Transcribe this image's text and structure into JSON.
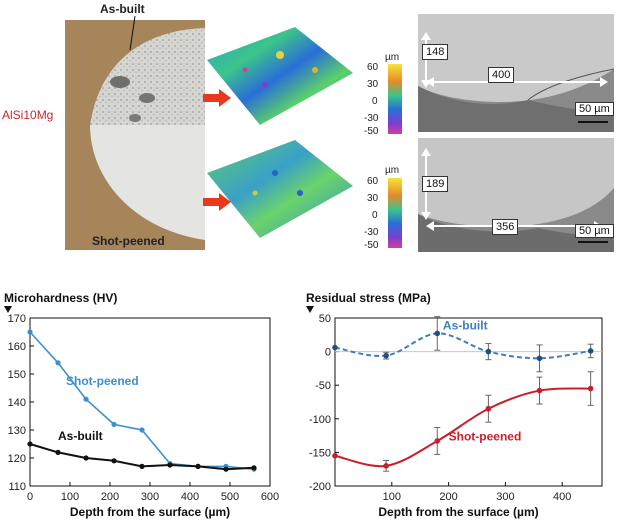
{
  "figure": {
    "sample": {
      "material": "AlSi10Mg",
      "top_label": "As-built",
      "bottom_label": "Shot-peened"
    },
    "colorbar": {
      "unit": "µm",
      "ticks": [
        "60",
        "30",
        "0",
        "-30",
        "-50"
      ]
    },
    "micrographs": [
      {
        "depth": "148",
        "width": "400",
        "scale": "50 µm"
      },
      {
        "depth": "189",
        "width": "356",
        "scale": "50 µm"
      }
    ]
  },
  "chart_data": [
    {
      "type": "line",
      "title": "Microhardness (HV)",
      "xlabel": "Depth from the surface (µm)",
      "ylabel": "",
      "xlim": [
        0,
        600
      ],
      "ylim": [
        110,
        170
      ],
      "xticks": [
        "0",
        "100",
        "200",
        "300",
        "400",
        "500",
        "600"
      ],
      "yticks": [
        "110",
        "120",
        "130",
        "140",
        "150",
        "160",
        "170"
      ],
      "grid": false,
      "series": [
        {
          "name": "Shot-peened",
          "color": "#3d8fcf",
          "x": [
            0,
            70,
            140,
            210,
            280,
            350,
            420,
            490,
            560
          ],
          "y": [
            165,
            154,
            141,
            132,
            130,
            118,
            117,
            117,
            116
          ]
        },
        {
          "name": "As-built",
          "color": "#111111",
          "x": [
            0,
            70,
            140,
            210,
            280,
            350,
            420,
            490,
            560
          ],
          "y": [
            125,
            122,
            120,
            119,
            117,
            117.5,
            117,
            116,
            116.5
          ]
        }
      ]
    },
    {
      "type": "line",
      "title": "Residual stress (MPa)",
      "xlabel": "Depth from the surface (µm)",
      "ylabel": "",
      "xlim": [
        0,
        470
      ],
      "ylim": [
        -200,
        50
      ],
      "xticks": [
        "100",
        "200",
        "300",
        "400"
      ],
      "yticks": [
        "50",
        "0",
        "-50",
        "-100",
        "-150",
        "-200"
      ],
      "grid": false,
      "series": [
        {
          "name": "As-built",
          "color": "#3d7fc4",
          "dashed": true,
          "x": [
            0,
            90,
            180,
            270,
            360,
            450
          ],
          "y": [
            6,
            -6,
            27,
            0,
            -10,
            1
          ],
          "err": [
            0,
            5,
            25,
            12,
            20,
            10
          ]
        },
        {
          "name": "Shot-peened",
          "color": "#c8202a",
          "dashed": false,
          "x": [
            0,
            90,
            180,
            270,
            360,
            450
          ],
          "y": [
            -155,
            -170,
            -133,
            -85,
            -58,
            -55
          ],
          "err": [
            0,
            8,
            20,
            20,
            20,
            25
          ]
        }
      ]
    }
  ]
}
